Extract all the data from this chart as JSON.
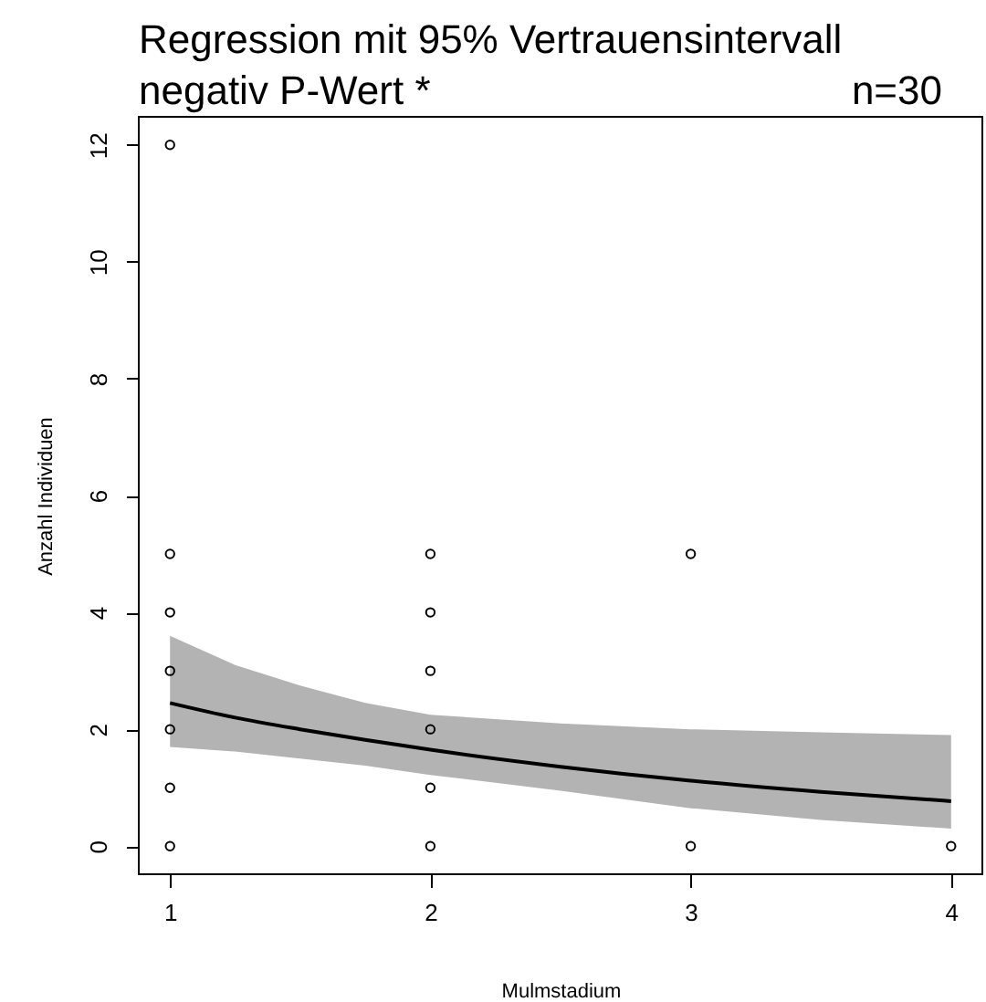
{
  "chart_data": {
    "type": "scatter",
    "title": "Regression mit 95% Vertrauensintervall",
    "subtitle": "negativ P-Wert *",
    "annotations": [
      "n=30"
    ],
    "xlabel": "Mulmstadium",
    "ylabel": "Anzahl Individuen",
    "xlim": [
      0.88,
      4.12
    ],
    "xticks": [
      1,
      2,
      3,
      4
    ],
    "ylim": [
      -0.48,
      12.48
    ],
    "yticks": [
      0,
      2,
      4,
      6,
      8,
      10,
      12
    ],
    "grid": false,
    "series": [
      {
        "type": "line",
        "marker": "none",
        "line_style": "solid",
        "color": "#000000",
        "x": [
          1,
          1.25,
          1.5,
          1.75,
          2,
          2.5,
          3,
          3.5,
          4
        ],
        "values": [
          2.45,
          2.2,
          2.0,
          1.82,
          1.65,
          1.36,
          1.12,
          0.93,
          0.77
        ],
        "lower": [
          1.7,
          1.62,
          1.5,
          1.38,
          1.22,
          0.95,
          0.65,
          0.45,
          0.3
        ],
        "upper": [
          3.6,
          3.1,
          2.75,
          2.45,
          2.25,
          2.1,
          2.0,
          1.95,
          1.9
        ]
      },
      {
        "marker": "circle",
        "color": "#000000",
        "x": [
          1,
          1,
          1,
          1,
          1,
          1,
          1,
          2,
          2,
          2,
          2,
          2,
          2,
          3,
          3,
          4
        ],
        "values": [
          0,
          1,
          2,
          3,
          4,
          5,
          12,
          0,
          1,
          2,
          3,
          4,
          5,
          0,
          5,
          0
        ]
      }
    ]
  }
}
